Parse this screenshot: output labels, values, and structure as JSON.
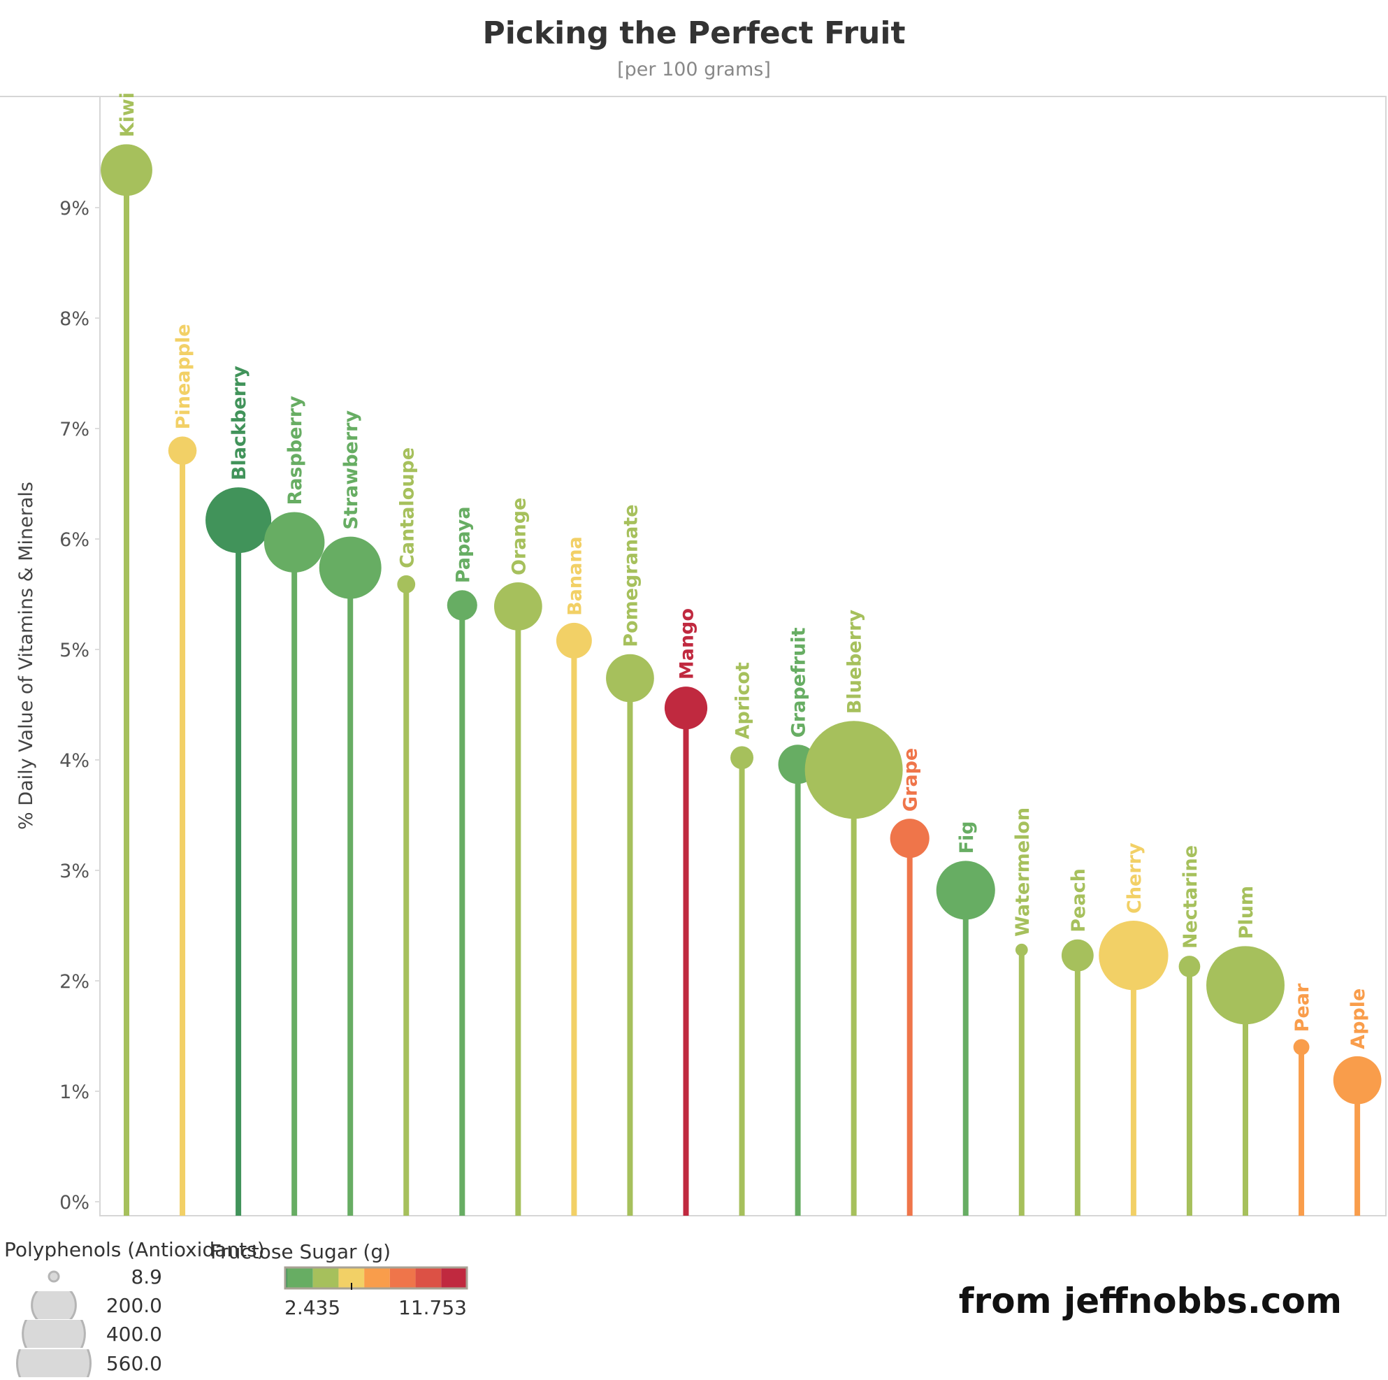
{
  "chart_data": {
    "type": "lollipop",
    "title": "Picking the Perfect Fruit",
    "subtitle": "[per 100 grams]",
    "ylabel": "% Daily Value of Vitamins & Minerals",
    "ylim": [
      0,
      10
    ],
    "yticks": [
      "0%",
      "1%",
      "2%",
      "3%",
      "4%",
      "5%",
      "6%",
      "7%",
      "8%",
      "9%"
    ],
    "grid": false,
    "size_legend": {
      "title": "Polyphenols (Antioxidants)",
      "values": [
        "8.9",
        "200.0",
        "400.0",
        "560.0"
      ]
    },
    "color_legend": {
      "title": "Fructose Sugar (g)",
      "min": "2.435",
      "max": "11.753",
      "colors": [
        "#41935a",
        "#67ad63",
        "#a6c05c",
        "#f2d066",
        "#f99d4b",
        "#ef754a",
        "#dc5145",
        "#c0293f"
      ]
    },
    "fruits": [
      {
        "name": "Kiwi",
        "value": 9.34,
        "polyphenols": 156,
        "color": "#a6c05c"
      },
      {
        "name": "Pineapple",
        "value": 6.8,
        "polyphenols": 47,
        "color": "#f2d066"
      },
      {
        "name": "Blackberry",
        "value": 6.17,
        "polyphenols": 253,
        "color": "#41935a"
      },
      {
        "name": "Raspberry",
        "value": 5.97,
        "polyphenols": 214,
        "color": "#67ad63"
      },
      {
        "name": "Strawberry",
        "value": 5.74,
        "polyphenols": 226,
        "color": "#67ad63"
      },
      {
        "name": "Cantaloupe",
        "value": 5.59,
        "polyphenols": 19,
        "color": "#a6c05c"
      },
      {
        "name": "Papaya",
        "value": 5.4,
        "polyphenols": 53,
        "color": "#67ad63"
      },
      {
        "name": "Orange",
        "value": 5.39,
        "polyphenols": 135,
        "color": "#a6c05c"
      },
      {
        "name": "Banana",
        "value": 5.08,
        "polyphenols": 74,
        "color": "#f2d066"
      },
      {
        "name": "Pomegranate",
        "value": 4.74,
        "polyphenols": 135,
        "color": "#a6c05c"
      },
      {
        "name": "Mango",
        "value": 4.47,
        "polyphenols": 107,
        "color": "#c0293f"
      },
      {
        "name": "Apricot",
        "value": 4.02,
        "polyphenols": 31,
        "color": "#a6c05c"
      },
      {
        "name": "Grapefruit",
        "value": 3.96,
        "polyphenols": 90,
        "color": "#67ad63"
      },
      {
        "name": "Blueberry",
        "value": 3.91,
        "polyphenols": 560,
        "color": "#a6c05c"
      },
      {
        "name": "Grape",
        "value": 3.29,
        "polyphenols": 90,
        "color": "#ef754a"
      },
      {
        "name": "Fig",
        "value": 2.82,
        "polyphenols": 202,
        "color": "#67ad63"
      },
      {
        "name": "Watermelon",
        "value": 2.28,
        "polyphenols": 9,
        "color": "#a6c05c"
      },
      {
        "name": "Peach",
        "value": 2.23,
        "polyphenols": 60,
        "color": "#a6c05c"
      },
      {
        "name": "Cherry",
        "value": 2.23,
        "polyphenols": 282,
        "color": "#f2d066"
      },
      {
        "name": "Nectarine",
        "value": 2.13,
        "polyphenols": 27,
        "color": "#a6c05c"
      },
      {
        "name": "Plum",
        "value": 1.96,
        "polyphenols": 358,
        "color": "#a6c05c"
      },
      {
        "name": "Pear",
        "value": 1.4,
        "polyphenols": 15,
        "color": "#f99d4b"
      },
      {
        "name": "Apple",
        "value": 1.1,
        "polyphenols": 135,
        "color": "#f99d4b"
      }
    ]
  },
  "footer": {
    "credit": "from jeffnobbs.com"
  }
}
